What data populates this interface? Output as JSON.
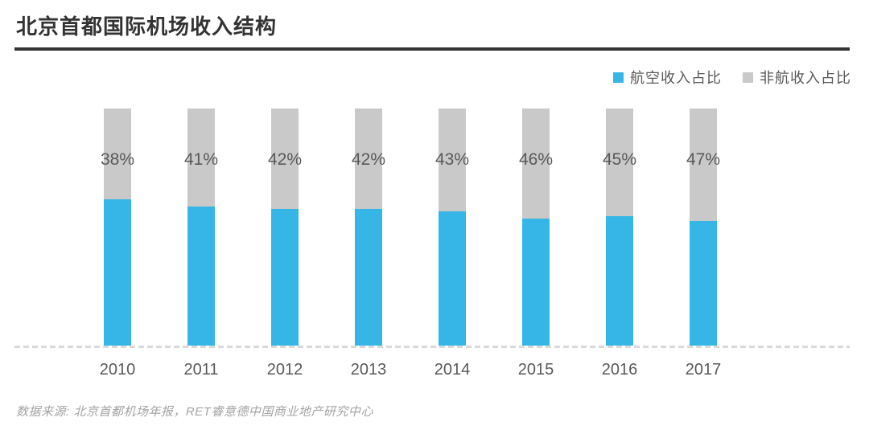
{
  "header": {
    "title": "北京首都国际机场收入结构"
  },
  "legend": {
    "items": [
      {
        "label": "航空收入占比",
        "color": "#36B6E7"
      },
      {
        "label": "非航收入占比",
        "color": "#C9C9C9"
      }
    ]
  },
  "chart_data": {
    "type": "bar",
    "stacking": "percent",
    "title": "北京首都国际机场收入结构",
    "categories": [
      "2010",
      "2011",
      "2012",
      "2013",
      "2014",
      "2015",
      "2016",
      "2017"
    ],
    "series": [
      {
        "name": "航空收入占比",
        "color": "#36B6E7",
        "values": [
          62,
          59,
          58,
          58,
          57,
          54,
          55,
          53
        ]
      },
      {
        "name": "非航收入占比",
        "color": "#C9C9C9",
        "values": [
          38,
          41,
          42,
          42,
          43,
          46,
          45,
          47
        ]
      }
    ],
    "bar_labels": {
      "labeled_series": "非航收入占比",
      "texts": [
        "38%",
        "41%",
        "42%",
        "42%",
        "43%",
        "46%",
        "45%",
        "47%"
      ]
    },
    "ylim": [
      0,
      100
    ],
    "yaxis_visible": false,
    "grid": false,
    "legend_position": "top-right",
    "baseline_color": "#D9D9D9",
    "label_color": "#595959"
  },
  "footer": {
    "source": "数据来源: 北京首都机场年报，RET睿意德中国商业地产研究中心"
  }
}
